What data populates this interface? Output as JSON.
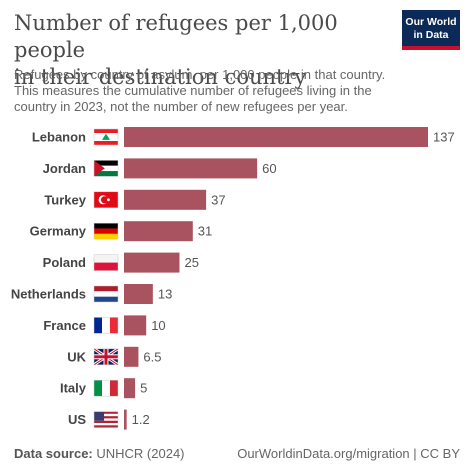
{
  "header": {
    "title_line1": "Number of refugees per 1,000 people",
    "title_line2": "in their destination country",
    "subtitle_line1": "Refugees by country of asylum, per 1,000 people in that country.",
    "subtitle_line2": "This measures the cumulative number of refugees living in the",
    "subtitle_line3": "country in 2023, not the number of new refugees per year.",
    "logo_line1": "Our World",
    "logo_line2": "in Data"
  },
  "footer": {
    "source_label": "Data source:",
    "source_value": "UNHCR (2024)",
    "right": "OurWorldinData.org/migration | CC BY"
  },
  "colors": {
    "bar": "#a8535f",
    "logo_bg": "#0b2a57",
    "logo_accent": "#c8102e"
  },
  "chart_data": {
    "type": "bar",
    "orientation": "horizontal",
    "categories": [
      "Lebanon",
      "Jordan",
      "Turkey",
      "Germany",
      "Poland",
      "Netherlands",
      "France",
      "UK",
      "Italy",
      "US"
    ],
    "values": [
      137,
      60,
      37,
      31,
      25,
      13,
      10,
      6.5,
      5,
      1.2
    ],
    "value_labels": [
      "137",
      "60",
      "37",
      "31",
      "25",
      "13",
      "10",
      "6.5",
      "5",
      "1.2"
    ],
    "flags": [
      "lebanon-flag",
      "jordan-flag",
      "turkey-flag",
      "germany-flag",
      "poland-flag",
      "netherlands-flag",
      "france-flag",
      "uk-flag",
      "italy-flag",
      "us-flag"
    ],
    "xlim": [
      0,
      137
    ],
    "grid": false,
    "legend": "none"
  }
}
